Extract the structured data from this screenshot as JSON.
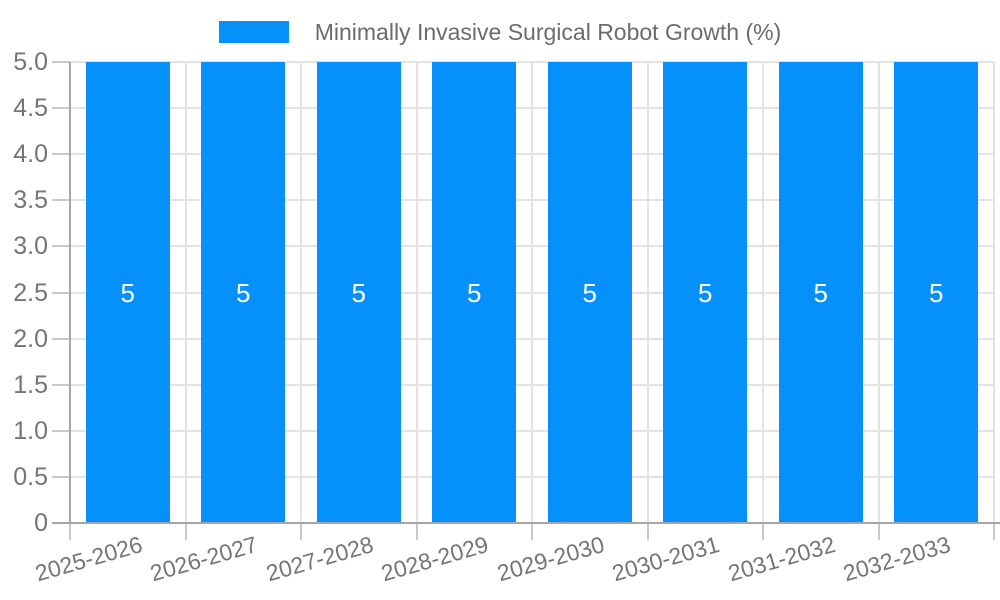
{
  "chart_data": {
    "type": "bar",
    "title": "Minimally Invasive Surgical Robot Growth (%)",
    "categories": [
      "2025-2026",
      "2026-2027",
      "2027-2028",
      "2028-2029",
      "2029-2030",
      "2030-2031",
      "2031-2032",
      "2032-2033"
    ],
    "series": [
      {
        "name": "Minimally Invasive Surgical Robot Growth (%)",
        "values": [
          5,
          5,
          5,
          5,
          5,
          5,
          5,
          5
        ]
      }
    ],
    "data_labels": [
      "5",
      "5",
      "5",
      "5",
      "5",
      "5",
      "5",
      "5"
    ],
    "xlabel": "",
    "ylabel": "",
    "ylim": [
      0,
      5
    ],
    "y_ticks": [
      "0",
      "0.5",
      "1.0",
      "1.5",
      "2.0",
      "2.5",
      "3.0",
      "3.5",
      "4.0",
      "4.5",
      "5.0"
    ],
    "grid": true,
    "legend_position": "top",
    "x_label_rotation_deg": -16,
    "colors": {
      "bar": "#0690fa",
      "gridline": "#e3e3e3",
      "axis_line": "#a6a6a6",
      "tick_mark": "#c9c9c9",
      "tick_label": "#757575",
      "legend_label": "#6b6b6b",
      "value_label": "#ffffff",
      "background": "#ffffff"
    }
  }
}
